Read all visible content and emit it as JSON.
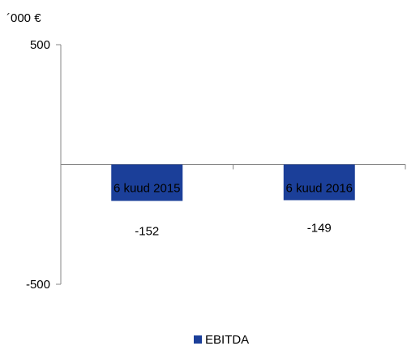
{
  "chart_data": {
    "type": "bar",
    "unit_label": "´000 €",
    "categories": [
      "6 kuud 2015",
      "6 kuud 2016"
    ],
    "series": [
      {
        "name": "EBITDA",
        "values": [
          -152,
          -149
        ],
        "color": "#1b3f99"
      }
    ],
    "ylim": [
      -500,
      500
    ],
    "y_ticks": [
      500,
      -500
    ],
    "data_labels": [
      "-152",
      "-149"
    ],
    "legend_position": "bottom",
    "grid": false
  }
}
